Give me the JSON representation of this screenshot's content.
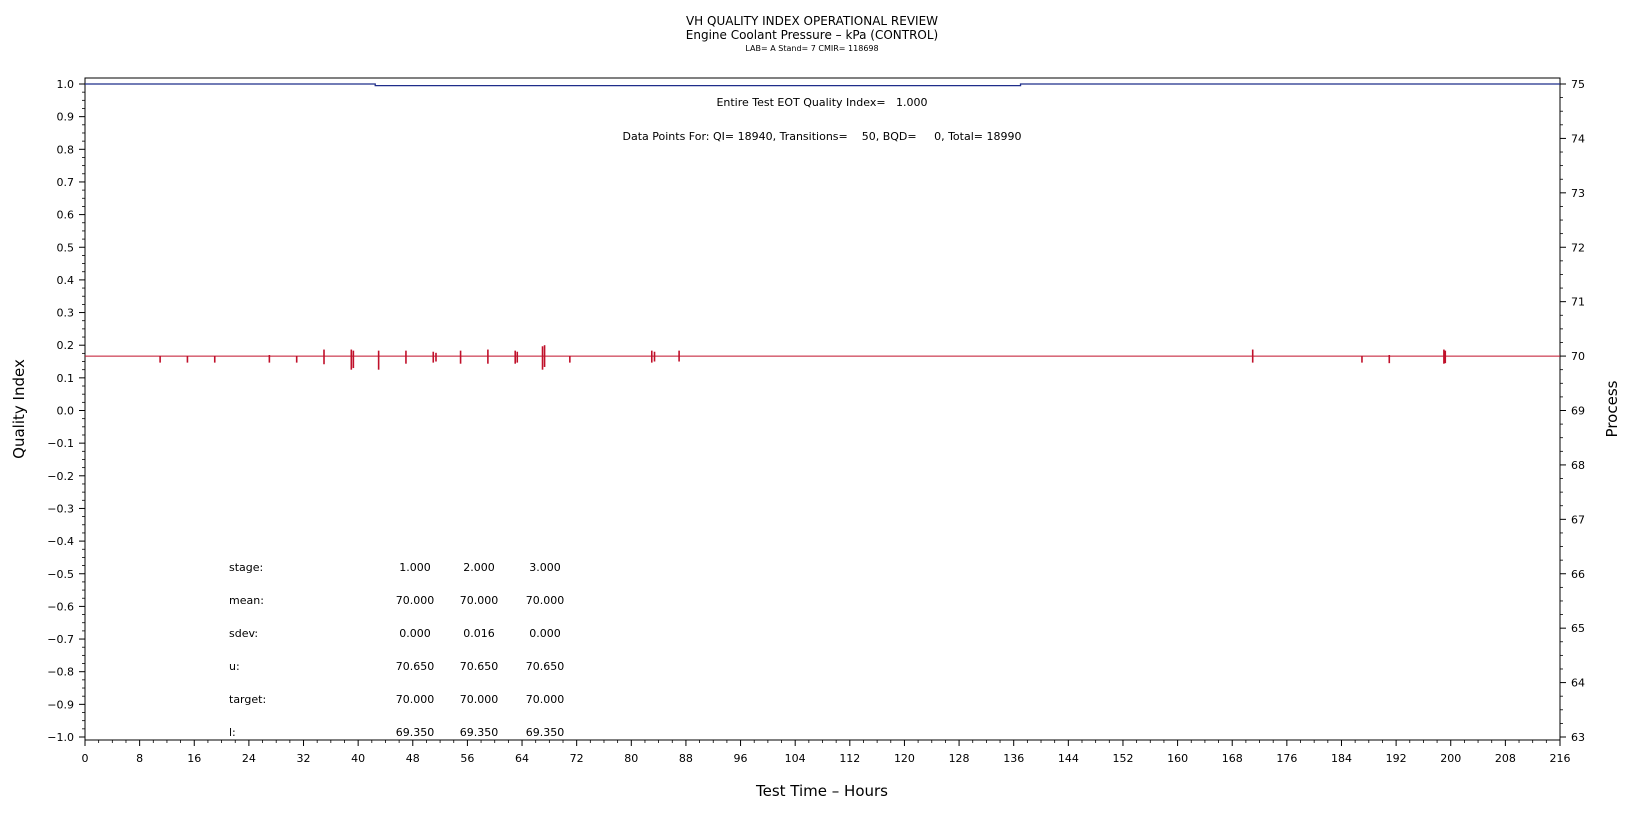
{
  "chart_data": {
    "type": "line",
    "title": "VH QUALITY INDEX OPERATIONAL REVIEW",
    "subtitle": "Engine Coolant Pressure – kPa (CONTROL)",
    "subsubtitle": "LAB= A Stand= 7 CMIR= 118698",
    "xlabel": "Test Time – Hours",
    "ylabel_left": "Quality Index",
    "ylabel_right": "Process",
    "xlim": [
      0,
      216
    ],
    "ylim_left": [
      -1.0,
      1.0
    ],
    "ylim_right": [
      63,
      75
    ],
    "x_ticks": [
      0,
      8,
      16,
      24,
      32,
      40,
      48,
      56,
      64,
      72,
      80,
      88,
      96,
      104,
      112,
      120,
      128,
      136,
      144,
      152,
      160,
      168,
      176,
      184,
      192,
      200,
      208,
      216
    ],
    "y_left_ticks": [
      "1.0",
      "0.9",
      "0.8",
      "0.7",
      "0.6",
      "0.5",
      "0.4",
      "0.3",
      "0.2",
      "0.1",
      "0.0",
      "−0.1",
      "−0.2",
      "−0.3",
      "−0.4",
      "−0.5",
      "−0.6",
      "−0.7",
      "−0.8",
      "−0.9",
      "−1.0"
    ],
    "y_right_ticks": [
      "75",
      "74",
      "73",
      "72",
      "71",
      "70",
      "69",
      "68",
      "67",
      "66",
      "65",
      "64",
      "63"
    ],
    "series": [
      {
        "role": "quality_index",
        "color": "#1f2d8a",
        "points": [
          [
            0,
            1.0
          ],
          [
            42.5,
            1.0
          ],
          [
            42.5,
            0.995
          ],
          [
            137,
            0.995
          ],
          [
            137,
            1.0
          ],
          [
            216,
            1.0
          ]
        ]
      },
      {
        "role": "process",
        "color": "#c0102a",
        "baseline": 70.0,
        "spikes": [
          [
            11,
            69.88,
            70.0
          ],
          [
            15,
            69.88,
            70.0
          ],
          [
            19,
            69.88,
            70.0
          ],
          [
            27,
            69.88,
            70.02
          ],
          [
            31,
            69.88,
            70.0
          ],
          [
            35,
            69.85,
            70.12
          ],
          [
            39,
            69.75,
            70.12
          ],
          [
            39.3,
            69.78,
            70.1
          ],
          [
            43,
            69.75,
            70.1
          ],
          [
            47,
            69.86,
            70.1
          ],
          [
            51,
            69.88,
            70.08
          ],
          [
            51.4,
            69.9,
            70.06
          ],
          [
            55,
            69.86,
            70.1
          ],
          [
            59,
            69.86,
            70.12
          ],
          [
            63,
            69.86,
            70.1
          ],
          [
            63.3,
            69.88,
            70.08
          ],
          [
            67,
            69.75,
            70.18
          ],
          [
            67.3,
            69.8,
            70.2
          ],
          [
            71,
            69.88,
            70.0
          ],
          [
            83,
            69.88,
            70.1
          ],
          [
            83.4,
            69.9,
            70.08
          ],
          [
            87,
            69.9,
            70.1
          ],
          [
            171,
            69.88,
            70.12
          ],
          [
            187,
            69.88,
            70.0
          ],
          [
            191,
            69.87,
            70.02
          ],
          [
            199,
            69.86,
            70.12
          ],
          [
            199.2,
            69.87,
            70.1
          ]
        ]
      }
    ],
    "annotations": {
      "eot_quality_index": "Entire Test EOT Quality Index=   1.000",
      "data_points": "Data Points For: QI= 18940, Transitions=    50, BQD=     0, Total= 18990"
    },
    "stats_table": {
      "rows": [
        {
          "label": "stage:",
          "values": [
            "1.000",
            "2.000",
            "3.000"
          ]
        },
        {
          "label": "mean:",
          "values": [
            "70.000",
            "70.000",
            "70.000"
          ]
        },
        {
          "label": "sdev:",
          "values": [
            "0.000",
            "0.016",
            "0.000"
          ]
        },
        {
          "label": "u:",
          "values": [
            "70.650",
            "70.650",
            "70.650"
          ]
        },
        {
          "label": "target:",
          "values": [
            "70.000",
            "70.000",
            "70.000"
          ]
        },
        {
          "label": "l:",
          "values": [
            "69.350",
            "69.350",
            "69.350"
          ]
        }
      ]
    }
  }
}
